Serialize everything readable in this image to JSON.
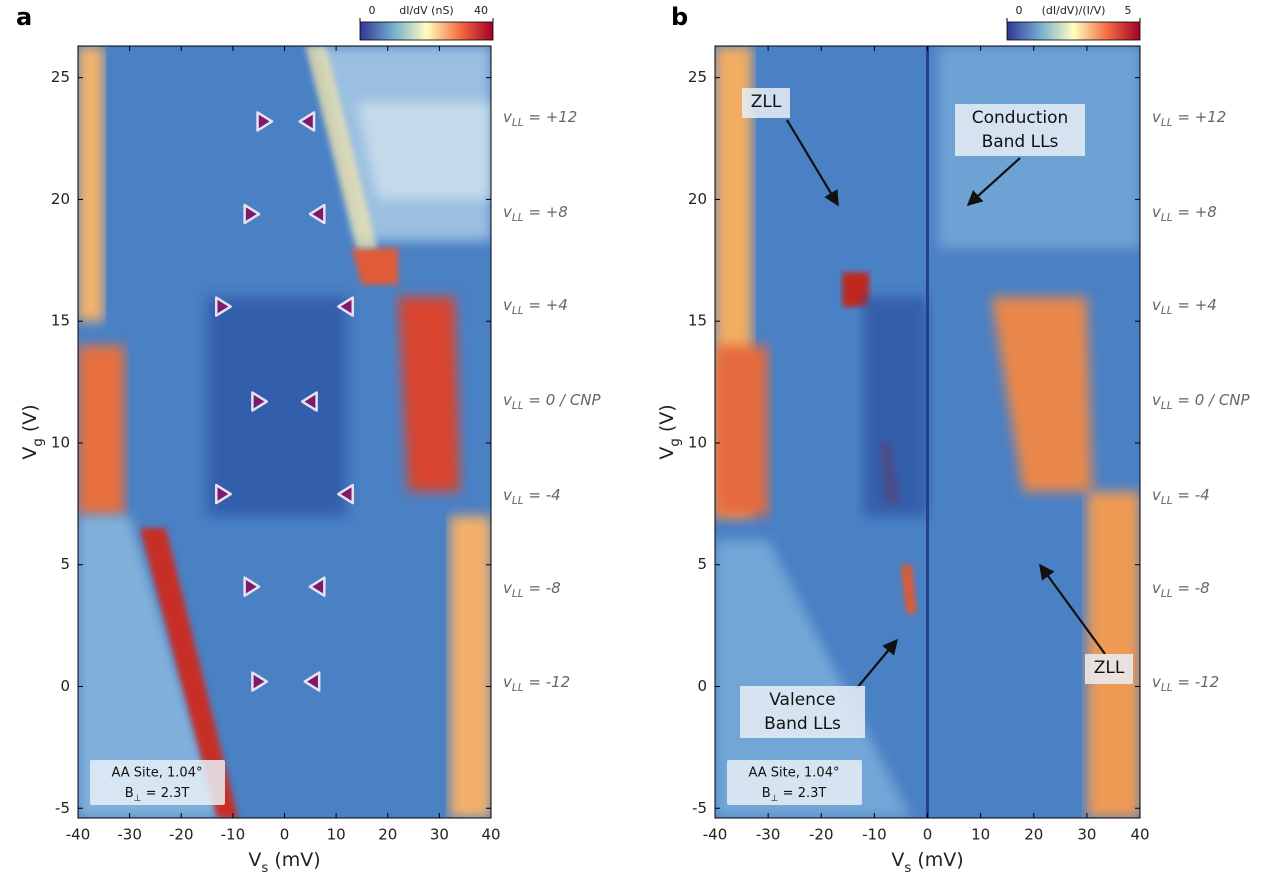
{
  "chart_data": [
    {
      "type": "heatmap",
      "panel_label": "a",
      "xlabel": {
        "main": "V",
        "sub": "s",
        "rest": " (mV)"
      },
      "ylabel": {
        "main": "V",
        "sub": "g",
        "rest": " (V)"
      },
      "xlim": [
        -40,
        40
      ],
      "xticks": [
        -40,
        -30,
        -20,
        -10,
        0,
        10,
        20,
        30,
        40
      ],
      "ylim": [
        -5.4,
        26.3
      ],
      "yticks": [
        -5,
        0,
        5,
        10,
        15,
        20,
        25
      ],
      "colorbar": {
        "label": "dI/dV (nS)",
        "lim": [
          0,
          40
        ],
        "ticks": [
          0,
          40
        ],
        "colors": [
          "#313695",
          "#74add1",
          "#ffffbf",
          "#f46d43",
          "#a50026"
        ]
      },
      "level_labels": [
        {
          "main": "v",
          "sub": "LL",
          "rest": " = +12"
        },
        {
          "main": "v",
          "sub": "LL",
          "rest": " = +8"
        },
        {
          "main": "v",
          "sub": "LL",
          "rest": " = +4"
        },
        {
          "main": "v",
          "sub": "LL",
          "rest": " = 0 / CNP"
        },
        {
          "main": "v",
          "sub": "LL",
          "rest": " = -4"
        },
        {
          "main": "v",
          "sub": "LL",
          "rest": " = -8"
        },
        {
          "main": "v",
          "sub": "LL",
          "rest": " = -12"
        }
      ],
      "markers": {
        "x": [
          -4,
          4.5,
          -6.5,
          6.5,
          -12,
          12,
          -5,
          5,
          -12,
          12,
          -6.5,
          6.5,
          -5,
          5.5
        ],
        "y": [
          23.2,
          23.2,
          19.4,
          19.4,
          15.6,
          15.6,
          11.7,
          11.7,
          7.9,
          7.9,
          4.1,
          4.1,
          0.2,
          0.2
        ],
        "direction": [
          "right",
          "left",
          "right",
          "left",
          "right",
          "left",
          "right",
          "left",
          "right",
          "left",
          "right",
          "left",
          "right",
          "left"
        ],
        "color": "#7b1a6e"
      },
      "inset": {
        "line1": "AA Site, 1.04°",
        "line2": {
          "main": "B",
          "sub": "⊥",
          "rest": " = 2.3T"
        }
      }
    },
    {
      "type": "heatmap",
      "panel_label": "b",
      "xlabel": {
        "main": "V",
        "sub": "s",
        "rest": " (mV)"
      },
      "ylabel": {
        "main": "V",
        "sub": "g",
        "rest": " (V)"
      },
      "xlim": [
        -40,
        40
      ],
      "xticks": [
        -40,
        -30,
        -20,
        -10,
        0,
        10,
        20,
        30,
        40
      ],
      "ylim": [
        -5.4,
        26.3
      ],
      "yticks": [
        -5,
        0,
        5,
        10,
        15,
        20,
        25
      ],
      "colorbar": {
        "label": "(dI/dV)/(I/V)",
        "lim": [
          0,
          5
        ],
        "ticks": [
          0,
          5
        ],
        "colors": [
          "#313695",
          "#74add1",
          "#ffffbf",
          "#f46d43",
          "#a50026"
        ]
      },
      "level_labels": [
        {
          "main": "v",
          "sub": "LL",
          "rest": " = +12"
        },
        {
          "main": "v",
          "sub": "LL",
          "rest": " = +8"
        },
        {
          "main": "v",
          "sub": "LL",
          "rest": " = +4"
        },
        {
          "main": "v",
          "sub": "LL",
          "rest": " = 0 / CNP"
        },
        {
          "main": "v",
          "sub": "LL",
          "rest": " = -4"
        },
        {
          "main": "v",
          "sub": "LL",
          "rest": " = -8"
        },
        {
          "main": "v",
          "sub": "LL",
          "rest": " = -12"
        }
      ],
      "annotations": [
        {
          "lines": [
            "ZLL"
          ]
        },
        {
          "lines": [
            "Conduction",
            "Band LLs"
          ]
        },
        {
          "lines": [
            "Valence",
            "Band LLs"
          ]
        },
        {
          "lines": [
            "ZLL"
          ]
        }
      ],
      "inset": {
        "line1": "AA Site, 1.04°",
        "line2": {
          "main": "B",
          "sub": "⊥",
          "rest": " = 2.3T"
        }
      }
    }
  ]
}
